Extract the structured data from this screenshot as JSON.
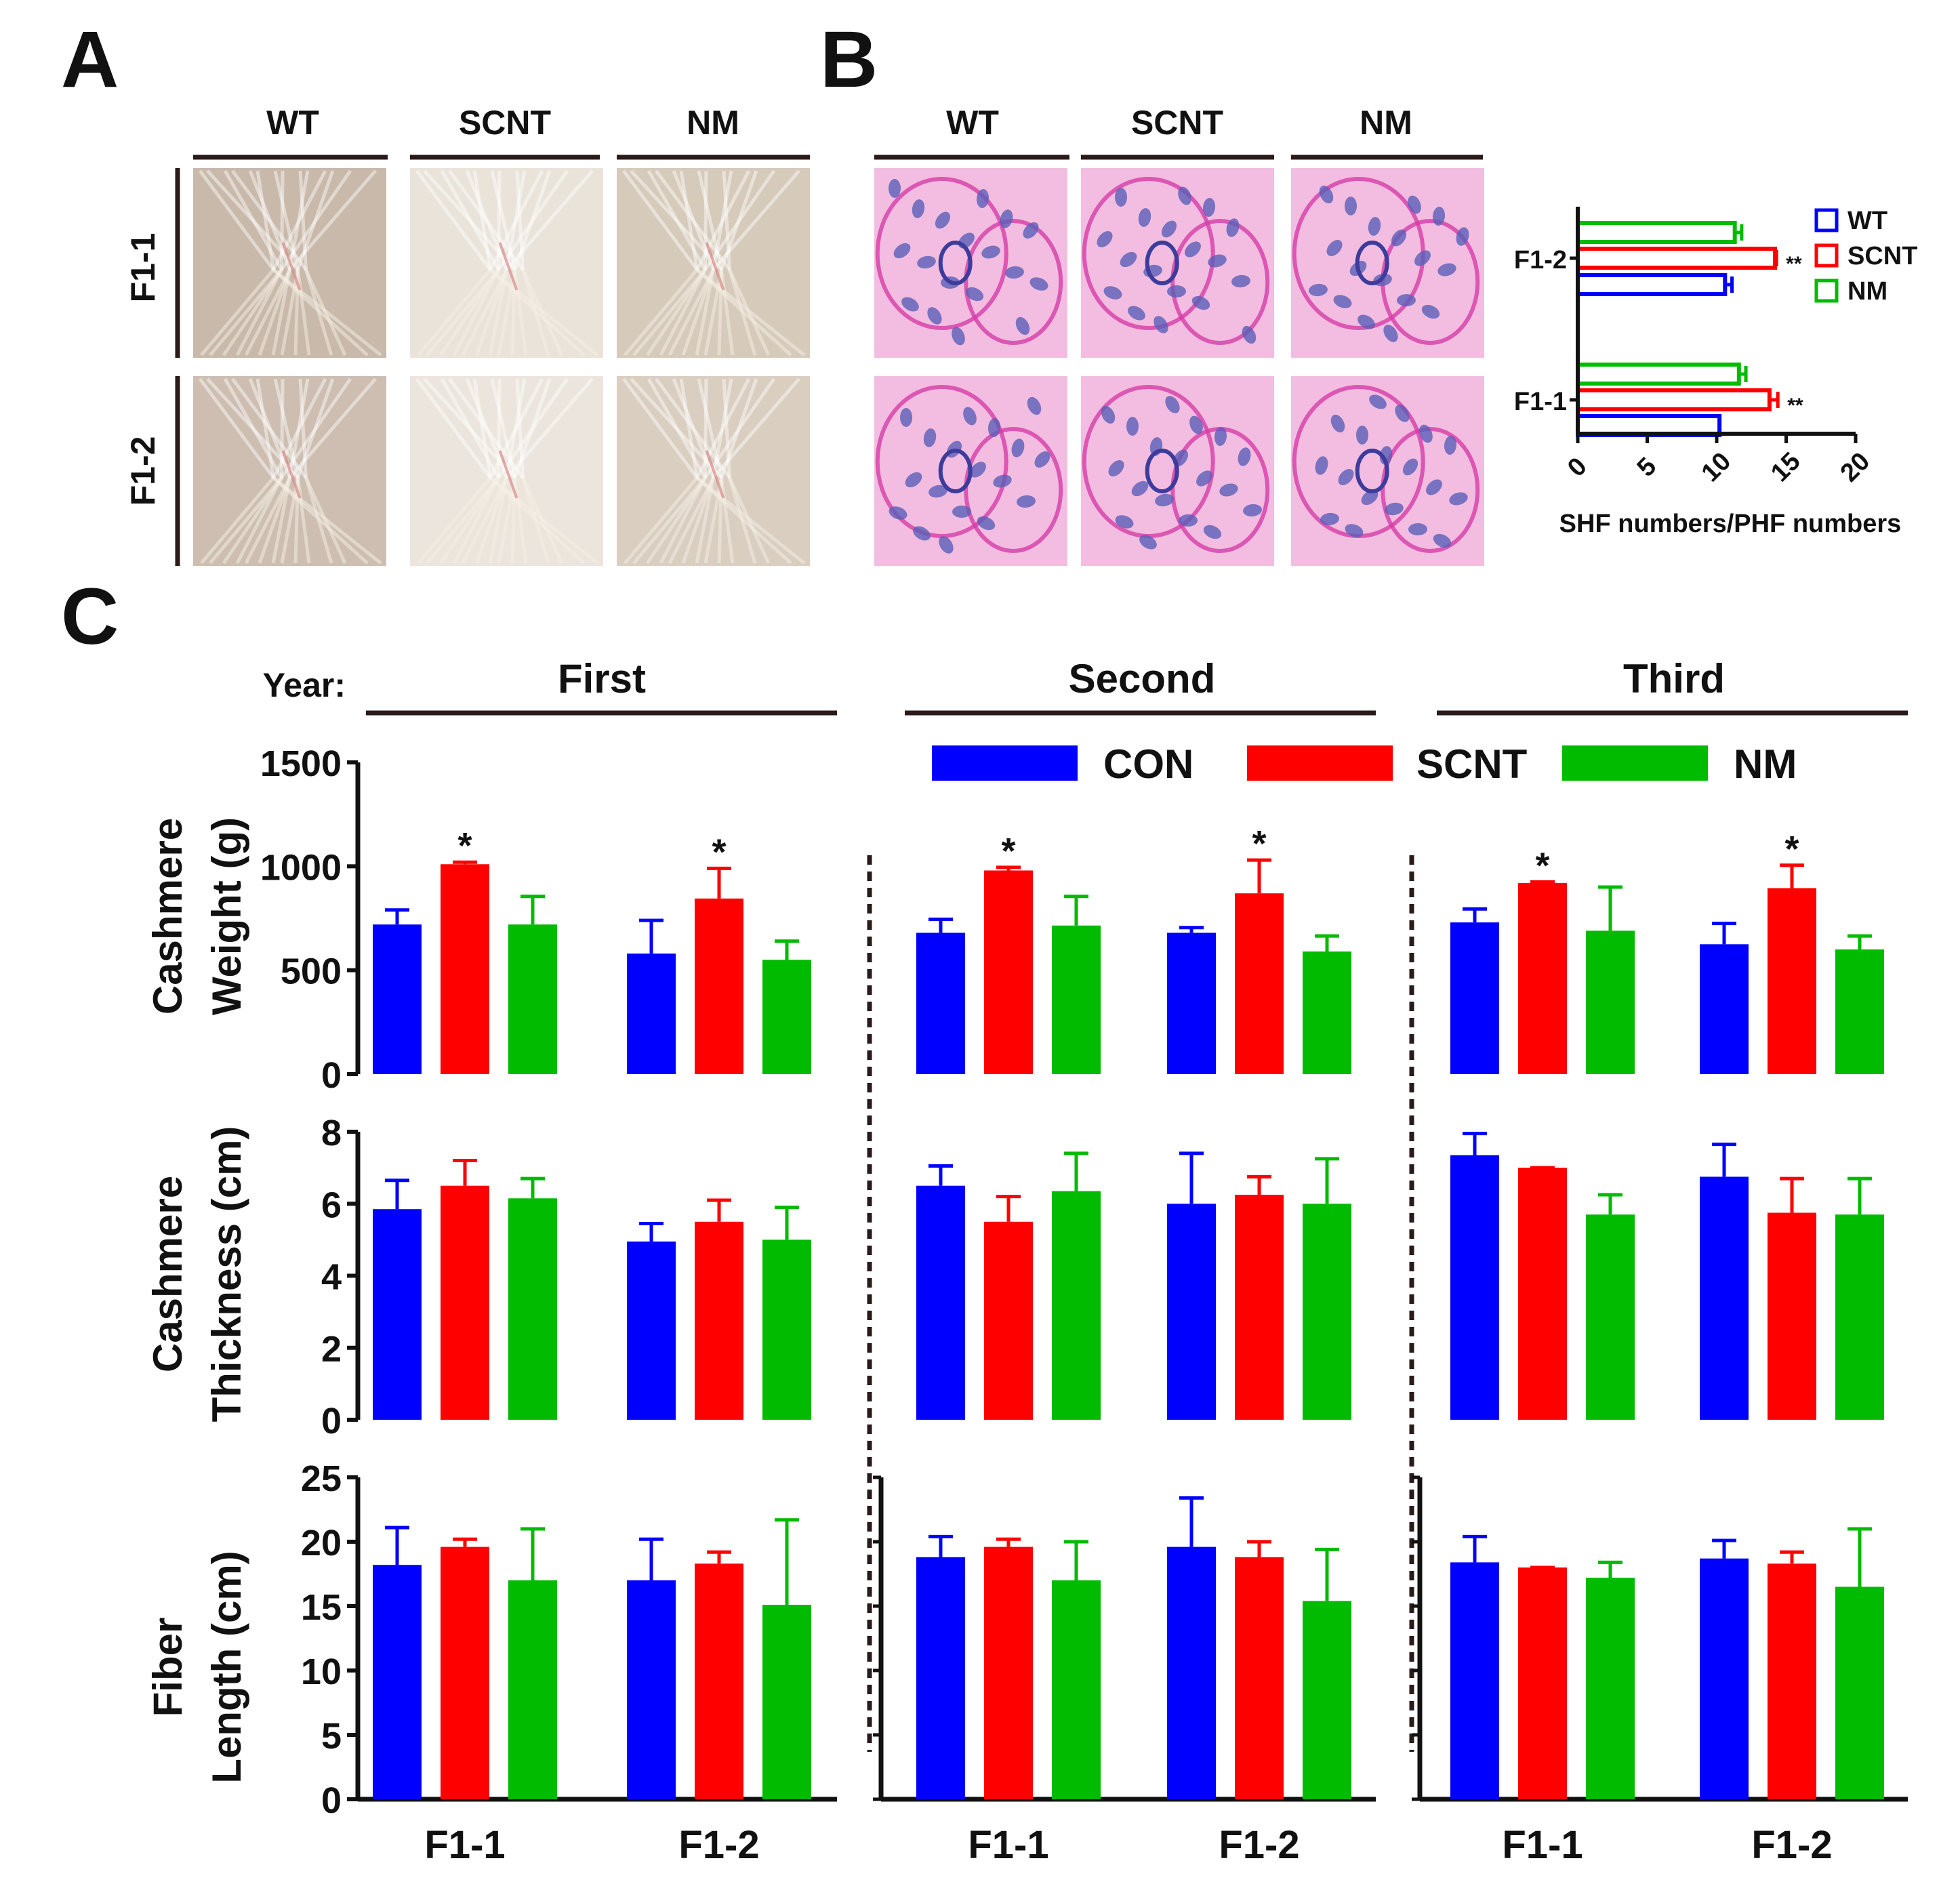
{
  "panel_labels": {
    "a": "A",
    "b": "B",
    "c": "C"
  },
  "panel_a": {
    "columns": [
      "WT",
      "SCNT",
      "NM"
    ],
    "rows": [
      "F1-1",
      "F1-2"
    ],
    "photo_description_icon": "fleece-photo-icon"
  },
  "panel_b": {
    "columns": [
      "WT",
      "SCNT",
      "NM"
    ],
    "photo_icon": "histology-section-icon"
  },
  "colors": {
    "con": "#0000ff",
    "scnt": "#ff0000",
    "nm": "#00bb00",
    "axis": "#111111",
    "photo_a": "#cdbfb0",
    "photo_b": "#f2bde0"
  },
  "panel_c": {
    "year_label": "Year:",
    "years": [
      "First",
      "Second",
      "Third"
    ],
    "legend": [
      "CON",
      "SCNT",
      "NM"
    ],
    "row_labels": [
      [
        "Cashmere",
        "Weight (g)"
      ],
      [
        "Cashmere",
        "Thickness (cm)"
      ],
      [
        "Fiber",
        "Length (cm)"
      ]
    ],
    "groups": [
      "F1-1",
      "F1-2"
    ]
  },
  "chart_data": [
    {
      "id": "B-histogram",
      "type": "bar",
      "orientation": "horizontal",
      "categories": [
        "F1-1",
        "F1-2"
      ],
      "xlabel": "SHF numbers/PHF numbers",
      "xlim": [
        0,
        20
      ],
      "xticks": [
        "0",
        "5",
        "10",
        "15",
        "20"
      ],
      "legend": [
        "WT",
        "SCNT",
        "NM"
      ],
      "series": [
        {
          "name": "WT",
          "values": [
            10.2,
            10.6
          ],
          "errors": [
            0,
            0.5
          ]
        },
        {
          "name": "SCNT",
          "values": [
            13.8,
            14.2
          ],
          "errors": [
            0.6,
            0.1
          ]
        },
        {
          "name": "NM",
          "values": [
            11.6,
            11.3
          ],
          "errors": [
            0.5,
            0.5
          ]
        }
      ],
      "annotations": [
        {
          "category": "F1-1",
          "series": "SCNT",
          "text": "**"
        },
        {
          "category": "F1-2",
          "series": "SCNT",
          "text": "**"
        }
      ]
    },
    {
      "id": "C-weight",
      "type": "bar",
      "metric": "Cashmere Weight (g)",
      "ylim": [
        0,
        1500
      ],
      "yticks": [
        "0",
        "500",
        "1000",
        "1500"
      ],
      "years": [
        {
          "year": "First",
          "groups": [
            {
              "name": "F1-1",
              "values": [
                720,
                1010,
                720
              ],
              "errors": [
                70,
                10,
                135
              ],
              "stars": [
                "",
                "*",
                ""
              ]
            },
            {
              "name": "F1-2",
              "values": [
                580,
                845,
                550
              ],
              "errors": [
                160,
                145,
                90
              ],
              "stars": [
                "",
                "*",
                ""
              ]
            }
          ]
        },
        {
          "year": "Second",
          "groups": [
            {
              "name": "F1-1",
              "values": [
                680,
                980,
                715
              ],
              "errors": [
                65,
                15,
                140
              ],
              "stars": [
                "",
                "*",
                ""
              ]
            },
            {
              "name": "F1-2",
              "values": [
                680,
                870,
                590
              ],
              "errors": [
                25,
                160,
                75
              ],
              "stars": [
                "",
                "*",
                ""
              ]
            }
          ]
        },
        {
          "year": "Third",
          "groups": [
            {
              "name": "F1-1",
              "values": [
                730,
                920,
                690
              ],
              "errors": [
                65,
                5,
                210
              ],
              "stars": [
                "",
                "*",
                ""
              ]
            },
            {
              "name": "F1-2",
              "values": [
                625,
                895,
                600
              ],
              "errors": [
                100,
                110,
                65
              ],
              "stars": [
                "",
                "*",
                ""
              ]
            }
          ]
        }
      ]
    },
    {
      "id": "C-thickness",
      "type": "bar",
      "metric": "Cashmere Thickness (cm)",
      "ylim": [
        0,
        8
      ],
      "yticks": [
        "0",
        "2",
        "4",
        "6",
        "8"
      ],
      "years": [
        {
          "year": "First",
          "groups": [
            {
              "name": "F1-1",
              "values": [
                5.85,
                6.5,
                6.15
              ],
              "errors": [
                0.8,
                0.7,
                0.55
              ]
            },
            {
              "name": "F1-2",
              "values": [
                4.95,
                5.5,
                5.0
              ],
              "errors": [
                0.5,
                0.6,
                0.9
              ]
            }
          ]
        },
        {
          "year": "Second",
          "groups": [
            {
              "name": "F1-1",
              "values": [
                6.5,
                5.5,
                6.35
              ],
              "errors": [
                0.55,
                0.7,
                1.05
              ]
            },
            {
              "name": "F1-2",
              "values": [
                6.0,
                6.25,
                6.0
              ],
              "errors": [
                1.4,
                0.5,
                1.25
              ]
            }
          ]
        },
        {
          "year": "Third",
          "groups": [
            {
              "name": "F1-1",
              "values": [
                7.35,
                7.0,
                5.7
              ],
              "errors": [
                0.6,
                0,
                0.55
              ]
            },
            {
              "name": "F1-2",
              "values": [
                6.75,
                5.75,
                5.7
              ],
              "errors": [
                0.9,
                0.95,
                1.0
              ]
            }
          ]
        }
      ]
    },
    {
      "id": "C-length",
      "type": "bar",
      "metric": "Fiber Length (cm)",
      "ylim": [
        0,
        25
      ],
      "yticks": [
        "0",
        "5",
        "10",
        "15",
        "20",
        "25"
      ],
      "years": [
        {
          "year": "First",
          "groups": [
            {
              "name": "F1-1",
              "values": [
                18.2,
                19.6,
                17.0
              ],
              "errors": [
                2.9,
                0.6,
                4.0
              ]
            },
            {
              "name": "F1-2",
              "values": [
                17.0,
                18.3,
                15.1
              ],
              "errors": [
                3.2,
                0.9,
                6.6
              ]
            }
          ]
        },
        {
          "year": "Second",
          "groups": [
            {
              "name": "F1-1",
              "values": [
                18.8,
                19.6,
                17.0
              ],
              "errors": [
                1.6,
                0.6,
                3.0
              ]
            },
            {
              "name": "F1-2",
              "values": [
                19.6,
                18.8,
                15.4
              ],
              "errors": [
                3.8,
                1.2,
                4.0
              ]
            }
          ]
        },
        {
          "year": "Third",
          "groups": [
            {
              "name": "F1-1",
              "values": [
                18.4,
                18.0,
                17.2
              ],
              "errors": [
                2.0,
                0,
                1.2
              ]
            },
            {
              "name": "F1-2",
              "values": [
                18.7,
                18.3,
                16.5
              ],
              "errors": [
                1.4,
                0.9,
                4.5
              ]
            }
          ]
        }
      ]
    }
  ]
}
